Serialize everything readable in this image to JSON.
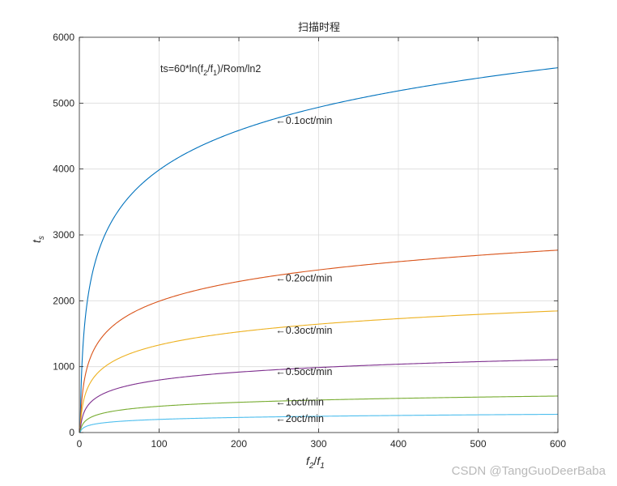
{
  "chart_data": {
    "type": "line",
    "title": "扫描时程",
    "formula": {
      "base": "ts=60*ln(f",
      "sub1": "2",
      "mid": "/f",
      "sub2": "1",
      "tail": ")/Rom/ln2"
    },
    "xlabel": {
      "main1": "f",
      "sub1": "2",
      "slash": "/",
      "main2": "f",
      "sub2": "1"
    },
    "ylabel": {
      "main": "t",
      "sub": "s"
    },
    "xlim": [
      0,
      600
    ],
    "ylim": [
      0,
      6000
    ],
    "xticks": [
      0,
      100,
      200,
      300,
      400,
      500,
      600
    ],
    "yticks": [
      0,
      1000,
      2000,
      3000,
      4000,
      5000,
      6000
    ],
    "grid": true,
    "annotation_x": 250,
    "series": [
      {
        "name": "0.1oct/min",
        "rom": 0.1,
        "color": "#0072BD"
      },
      {
        "name": "0.2oct/min",
        "rom": 0.2,
        "color": "#D95319"
      },
      {
        "name": "0.3oct/min",
        "rom": 0.3,
        "color": "#EDB120"
      },
      {
        "name": "0.5oct/min",
        "rom": 0.5,
        "color": "#7E2F8E"
      },
      {
        "name": "1oct/min",
        "rom": 1,
        "color": "#77AC30"
      },
      {
        "name": "2oct/min",
        "rom": 2,
        "color": "#4DBEEE"
      }
    ],
    "annotations": [
      {
        "text": "←0.1oct/min",
        "y": 4735
      },
      {
        "text": "←0.2oct/min",
        "y": 2340
      },
      {
        "text": "←0.3oct/min",
        "y": 1550
      },
      {
        "text": "←0.5oct/min",
        "y": 920
      },
      {
        "text": "←1oct/min",
        "y": 460
      },
      {
        "text": "←2oct/min",
        "y": 210
      }
    ]
  },
  "watermark": "CSDN @TangGuoDeerBaba"
}
